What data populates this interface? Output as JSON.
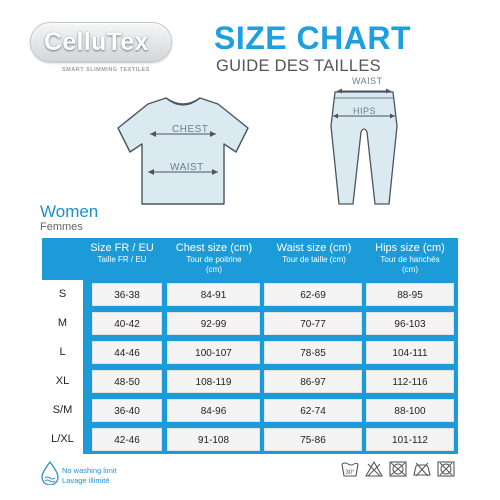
{
  "brand": {
    "name": "CelluTex",
    "tagline": "SMART SLIMMING TEXTILES"
  },
  "title": {
    "main": "SIZE CHART",
    "sub": "GUIDE DES TAILLES"
  },
  "garment_labels": {
    "chest": "CHEST",
    "waist_top": "WAIST",
    "waist_leg": "WAIST",
    "hips": "HIPS"
  },
  "section": {
    "title": "Women",
    "subtitle": "Femmes"
  },
  "table": {
    "headers": [
      {
        "en": "Size FR / EU",
        "fr": "Taille FR / EU"
      },
      {
        "en": "Chest size (cm)",
        "fr": "Tour de poitrine (cm)"
      },
      {
        "en": "Waist size (cm)",
        "fr": "Tour de taille (cm)"
      },
      {
        "en": "Hips size (cm)",
        "fr": "Tour de hanchés (cm)"
      }
    ],
    "rows": [
      {
        "size": "S",
        "fr_eu": "36-38",
        "chest": "84-91",
        "waist": "62-69",
        "hips": "88-95"
      },
      {
        "size": "M",
        "fr_eu": "40-42",
        "chest": "92-99",
        "waist": "70-77",
        "hips": "96-103"
      },
      {
        "size": "L",
        "fr_eu": "44-46",
        "chest": "100-107",
        "waist": "78-85",
        "hips": "104-111"
      },
      {
        "size": "XL",
        "fr_eu": "48-50",
        "chest": "108-119",
        "waist": "86-97",
        "hips": "112-116"
      },
      {
        "size": "S/M",
        "fr_eu": "36-40",
        "chest": "84-96",
        "waist": "62-74",
        "hips": "88-100"
      },
      {
        "size": "L/XL",
        "fr_eu": "42-46",
        "chest": "91-108",
        "waist": "75-86",
        "hips": "101-112"
      }
    ]
  },
  "footer": {
    "wash_en": "No washing limit",
    "wash_fr": "Lavage illimité",
    "wash_temp": "30°",
    "care_icons": [
      "wash-30-icon",
      "no-bleach-icon",
      "no-tumble-dry-icon",
      "no-iron-icon",
      "no-dry-clean-icon"
    ]
  },
  "colors": {
    "accent": "#1e9fe0",
    "table_blue": "#1c9bd8",
    "garment_fill": "#dbe9f1"
  }
}
